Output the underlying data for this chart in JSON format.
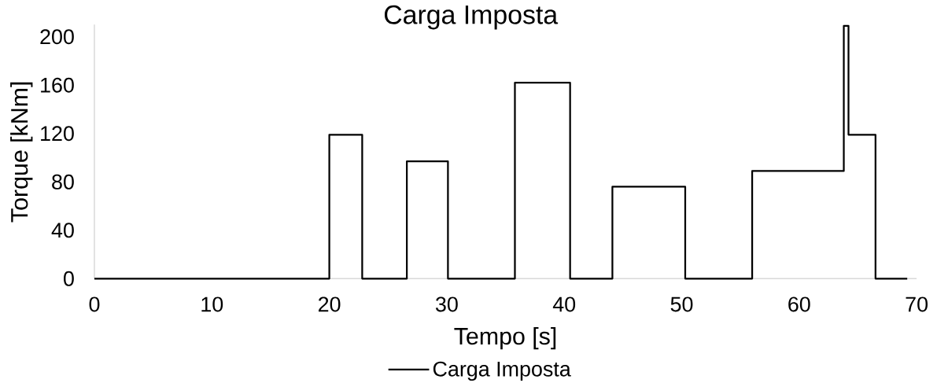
{
  "chart_data": {
    "type": "step",
    "title": "Carga Imposta",
    "xlabel": "Tempo [s]",
    "ylabel": "Torque [kNm]",
    "x": [
      0,
      20,
      22.8,
      26.6,
      30.1,
      35.8,
      40.5,
      44.1,
      50.3,
      56,
      63.8,
      64.2,
      66.5,
      69.2
    ],
    "series": [
      {
        "name": "Carga Imposta",
        "color": "#000000",
        "values": [
          0,
          119,
          0,
          97,
          0,
          162,
          0,
          76,
          0,
          89,
          209,
          119,
          0,
          0
        ]
      }
    ],
    "xlim": [
      0,
      70
    ],
    "ylim": [
      0,
      210
    ],
    "xticks": [
      0,
      10,
      20,
      30,
      40,
      50,
      60,
      70
    ],
    "yticks": [
      0,
      40,
      80,
      120,
      160,
      200
    ],
    "legend": "bottom"
  }
}
